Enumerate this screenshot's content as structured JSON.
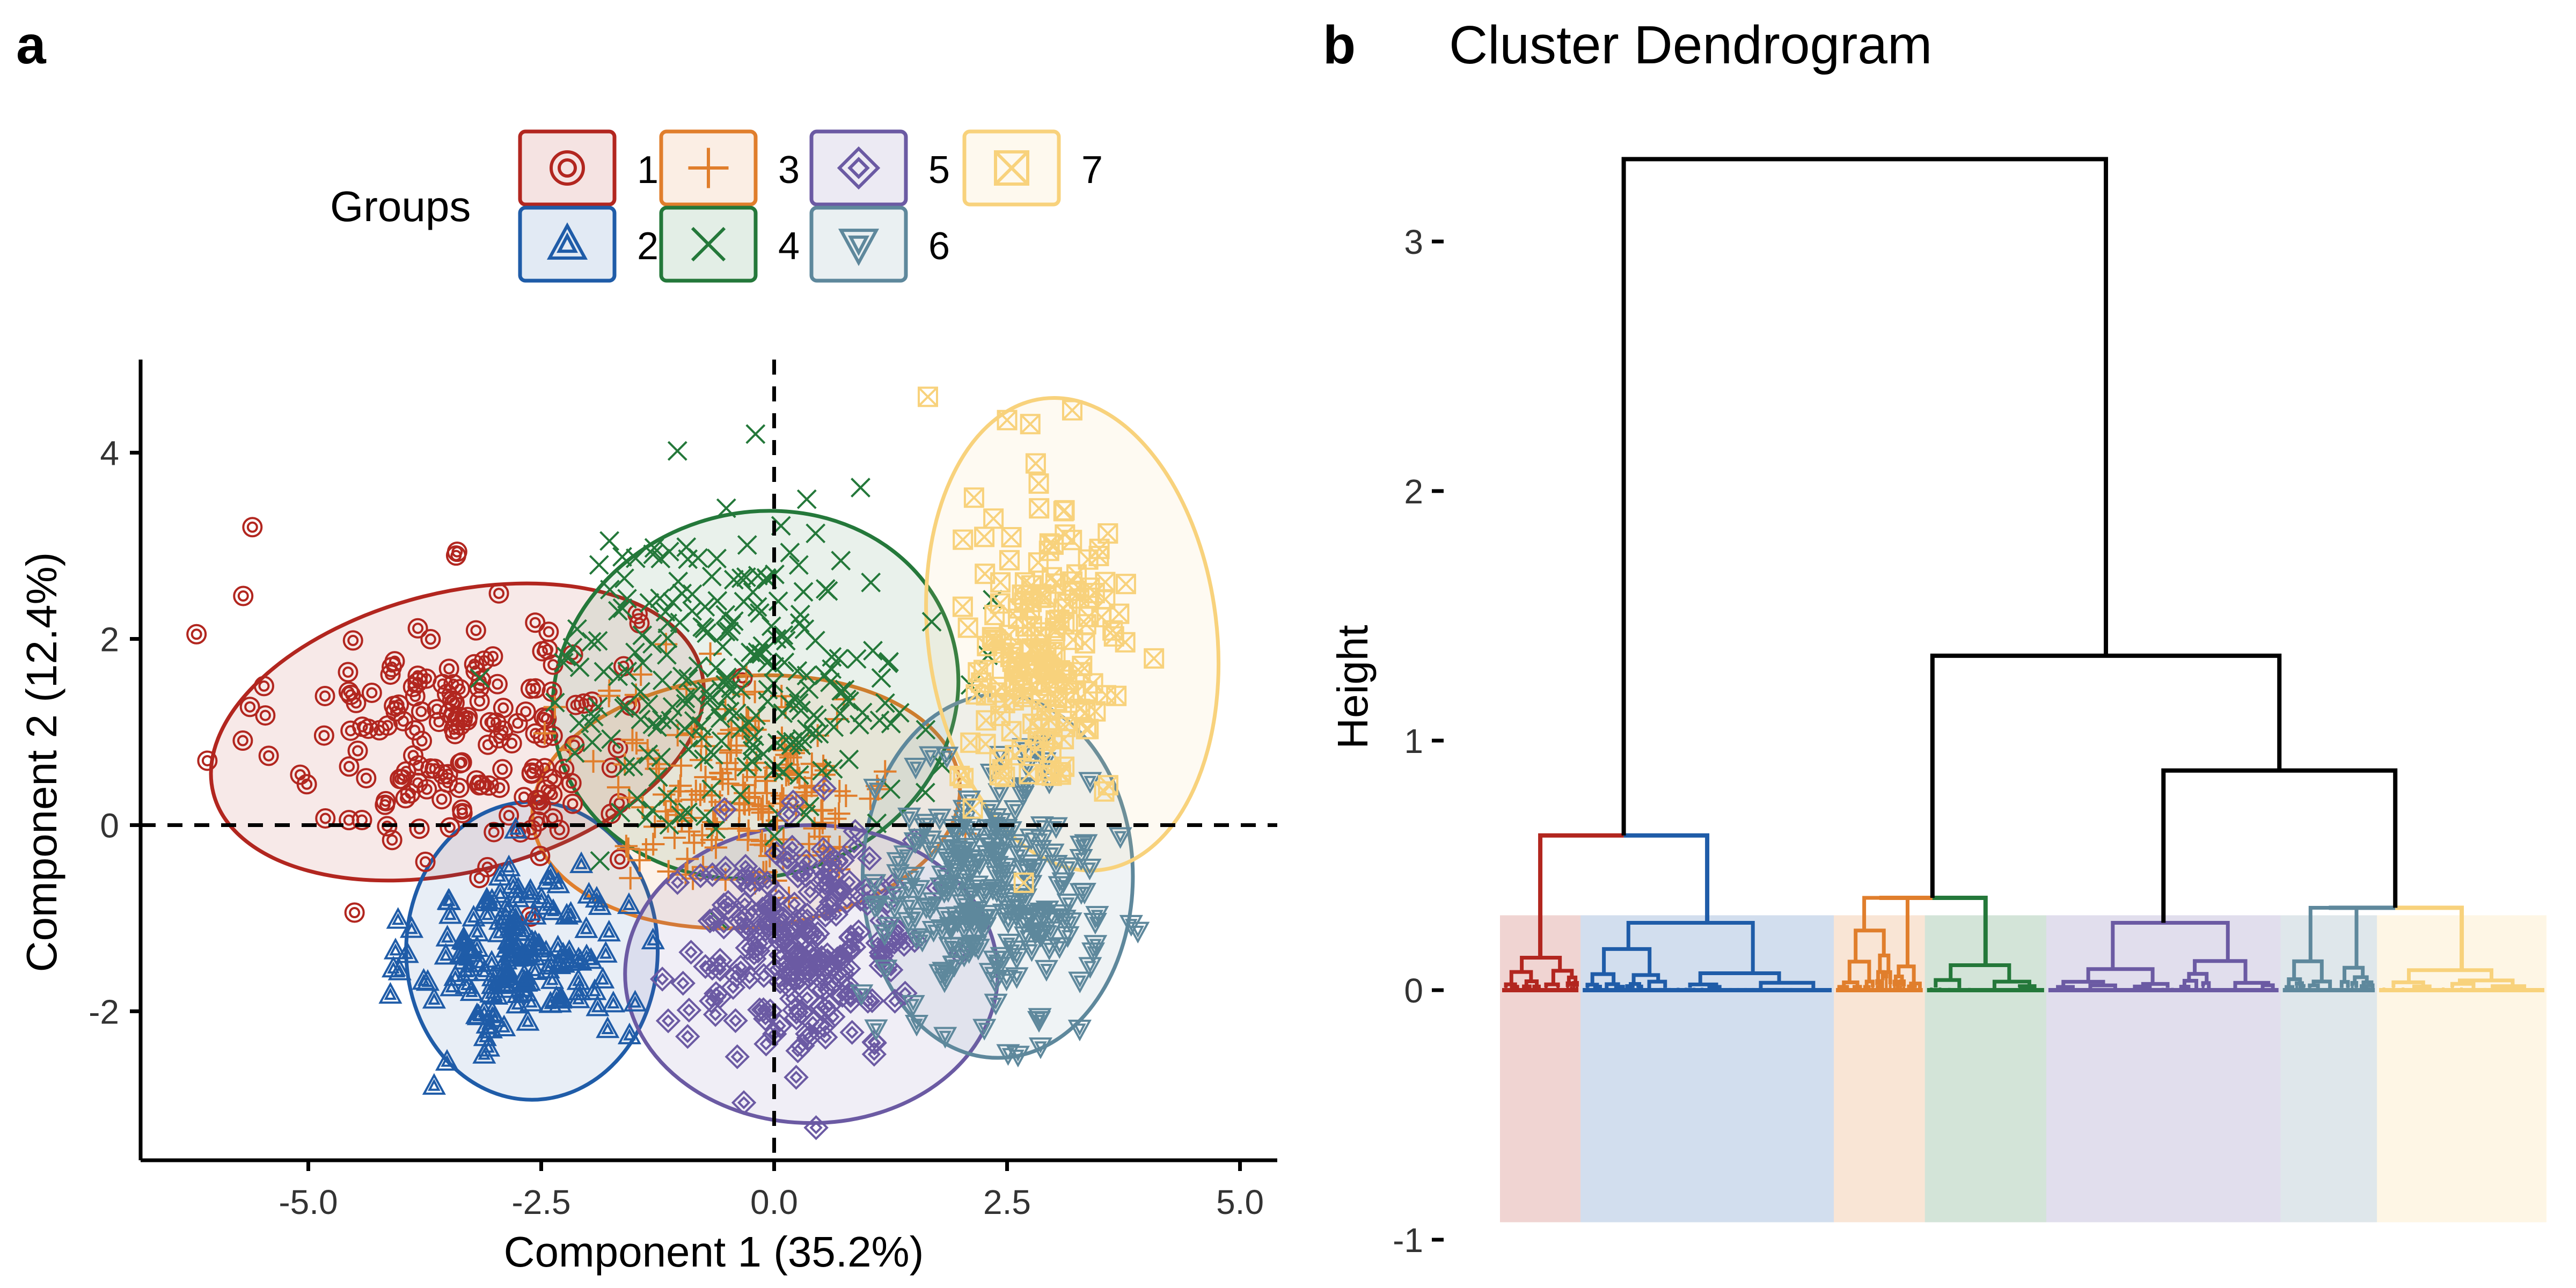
{
  "panels": [
    {
      "letter": "a"
    },
    {
      "letter": "b",
      "title": "Cluster Dendrogram"
    }
  ],
  "legend": {
    "title": "Groups",
    "items": [
      {
        "label": "1",
        "color": "#B2261F",
        "shape": "double-circle"
      },
      {
        "label": "2",
        "color": "#1F5CA8",
        "shape": "double-triangle-up"
      },
      {
        "label": "3",
        "color": "#E07E2C",
        "shape": "plus"
      },
      {
        "label": "4",
        "color": "#24783A",
        "shape": "cross"
      },
      {
        "label": "5",
        "color": "#6B5AA3",
        "shape": "double-diamond"
      },
      {
        "label": "6",
        "color": "#5E889C",
        "shape": "double-triangle-down"
      },
      {
        "label": "7",
        "color": "#F8D27C",
        "shape": "boxed-cross"
      }
    ]
  },
  "chart_data": [
    {
      "type": "scatter",
      "xlabel": "Component 1 (35.2%)",
      "ylabel": "Component 2 (12.4%)",
      "xlim": [
        -6.8,
        5.4
      ],
      "ylim": [
        -3.6,
        5.0
      ],
      "xticks": [
        -5.0,
        -2.5,
        0.0,
        2.5,
        5.0
      ],
      "xtick_labels": [
        "-5.0",
        "-2.5",
        "0.0",
        "2.5",
        "5.0"
      ],
      "yticks": [
        -2,
        0,
        2,
        4
      ],
      "ytick_labels": [
        "-2",
        "0",
        "2",
        "4"
      ],
      "reference_lines": {
        "x": 0,
        "y": 0,
        "style": "dashed"
      },
      "groups": [
        {
          "label": "1",
          "center": [
            -3.4,
            1.0
          ],
          "sd": [
            0.95,
            0.75
          ],
          "n": 170,
          "ellipse": {
            "cx": -3.4,
            "cy": 1.0,
            "rx": 2.7,
            "ry": 1.5,
            "angle": -14
          }
        },
        {
          "label": "2",
          "center": [
            -2.7,
            -1.4
          ],
          "sd": [
            0.55,
            0.5
          ],
          "n": 160,
          "ellipse": {
            "cx": -2.6,
            "cy": -1.35,
            "rx": 1.35,
            "ry": 1.6,
            "angle": 0
          }
        },
        {
          "label": "3",
          "center": [
            -0.3,
            0.4
          ],
          "sd": [
            0.8,
            0.55
          ],
          "n": 180,
          "ellipse": {
            "cx": -0.3,
            "cy": 0.25,
            "rx": 2.3,
            "ry": 1.35,
            "angle": -5
          }
        },
        {
          "label": "4",
          "center": [
            -0.4,
            1.6
          ],
          "sd": [
            0.95,
            0.8
          ],
          "n": 240,
          "ellipse": {
            "cx": -0.2,
            "cy": 1.4,
            "rx": 2.2,
            "ry": 1.95,
            "angle": -18
          }
        },
        {
          "label": "5",
          "center": [
            0.3,
            -1.3
          ],
          "sd": [
            0.65,
            0.6
          ],
          "n": 220,
          "ellipse": {
            "cx": 0.4,
            "cy": -1.6,
            "rx": 2.0,
            "ry": 1.6,
            "angle": 0
          }
        },
        {
          "label": "6",
          "center": [
            2.3,
            -0.7
          ],
          "sd": [
            0.55,
            0.65
          ],
          "n": 230,
          "ellipse": {
            "cx": 2.4,
            "cy": -0.55,
            "rx": 1.45,
            "ry": 1.95,
            "angle": 0
          }
        },
        {
          "label": "7",
          "center": [
            2.9,
            1.8
          ],
          "sd": [
            0.45,
            0.8
          ],
          "n": 180,
          "ellipse": {
            "cx": 3.2,
            "cy": 2.05,
            "rx": 1.55,
            "ry": 2.55,
            "angle": -7
          }
        }
      ],
      "outliers": [
        {
          "group": "1",
          "x": -5.6,
          "y": 3.2
        },
        {
          "group": "1",
          "x": -6.2,
          "y": 2.05
        },
        {
          "group": "2",
          "x": -3.65,
          "y": -2.8
        },
        {
          "group": "4",
          "x": -0.2,
          "y": 4.2
        },
        {
          "group": "4",
          "x": 0.35,
          "y": 3.5
        },
        {
          "group": "5",
          "x": 0.45,
          "y": -3.25
        },
        {
          "group": "7",
          "x": 1.65,
          "y": 4.6
        },
        {
          "group": "7",
          "x": 2.5,
          "y": 4.35
        }
      ]
    },
    {
      "type": "dendrogram",
      "ylabel": "Height",
      "ylim": [
        -1,
        3.3
      ],
      "yticks": [
        -1,
        0,
        1,
        2,
        3
      ],
      "ytick_labels": [
        "-1",
        "0",
        "1",
        "2",
        "3"
      ],
      "leaf_span": [
        0,
        100
      ],
      "clusters": [
        {
          "label": "1",
          "start": 0.0,
          "end": 7.7,
          "merge_height": 0.13,
          "top_height": 0.13
        },
        {
          "label": "2",
          "start": 7.7,
          "end": 31.9,
          "merge_height": 0.27,
          "top_height": 0.27
        },
        {
          "label": "3",
          "start": 31.9,
          "end": 40.6,
          "merge_height": 0.37,
          "top_height": 0.37
        },
        {
          "label": "4",
          "start": 40.6,
          "end": 52.2,
          "merge_height": 0.37,
          "top_height": 0.1
        },
        {
          "label": "5",
          "start": 52.2,
          "end": 74.6,
          "merge_height": 0.27,
          "top_height": 0.27
        },
        {
          "label": "6",
          "start": 74.6,
          "end": 83.8,
          "merge_height": 0.33,
          "top_height": 0.33
        },
        {
          "label": "7",
          "start": 83.8,
          "end": 100.0,
          "merge_height": 0.33,
          "top_height": 0.08
        }
      ],
      "merges": [
        {
          "left": "1",
          "right": "2",
          "height": 0.62
        },
        {
          "left": "3",
          "right": "4",
          "height": 0.37
        },
        {
          "left": "6",
          "right": "7",
          "height": 0.33
        },
        {
          "left": "5",
          "right": "6+7",
          "height": 0.88
        },
        {
          "left": "3+4",
          "right": "5+6+7",
          "height": 1.34
        },
        {
          "left": "1+2",
          "right": "3+4+5+6+7",
          "height": 3.33
        }
      ],
      "cluster_band": {
        "from": -0.93,
        "to": 0.3
      }
    }
  ]
}
